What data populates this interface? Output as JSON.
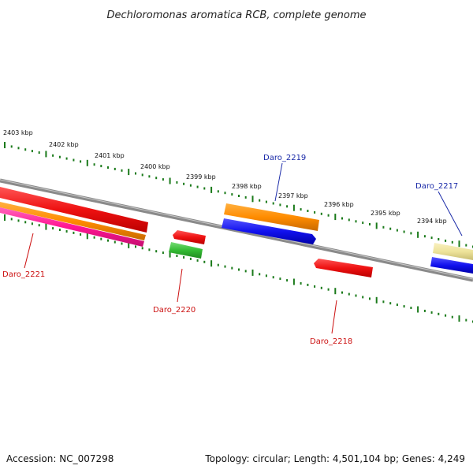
{
  "title": "Dechloromonas aromatica RCB, complete genome",
  "accession": "Accession: NC_007298",
  "summary": "Topology: circular; Length: 4,501,104 bp; Genes: 4,249",
  "scale_labels": [
    "2403 kbp",
    "2402 kbp",
    "2401 kbp",
    "2400 kbp",
    "2399 kbp",
    "2398 kbp",
    "2397 kbp",
    "2396 kbp",
    "2395 kbp",
    "2394 kbp"
  ],
  "genes": {
    "daro_2221": "Daro_2221",
    "daro_2220": "Daro_2220",
    "daro_2219": "Daro_2219",
    "daro_2218": "Daro_2218",
    "daro_2217": "Daro_2217"
  },
  "colors": {
    "backbone": "#8a8a8a",
    "red": "#ee1111",
    "orange": "#ff8c00",
    "magenta": "#ff1493",
    "green": "#33bb33",
    "blue": "#1111ee",
    "khaki": "#eee39a",
    "tick": "#1a7a1a",
    "label_blue": "#1a2aa8",
    "label_red": "#cc1111"
  }
}
